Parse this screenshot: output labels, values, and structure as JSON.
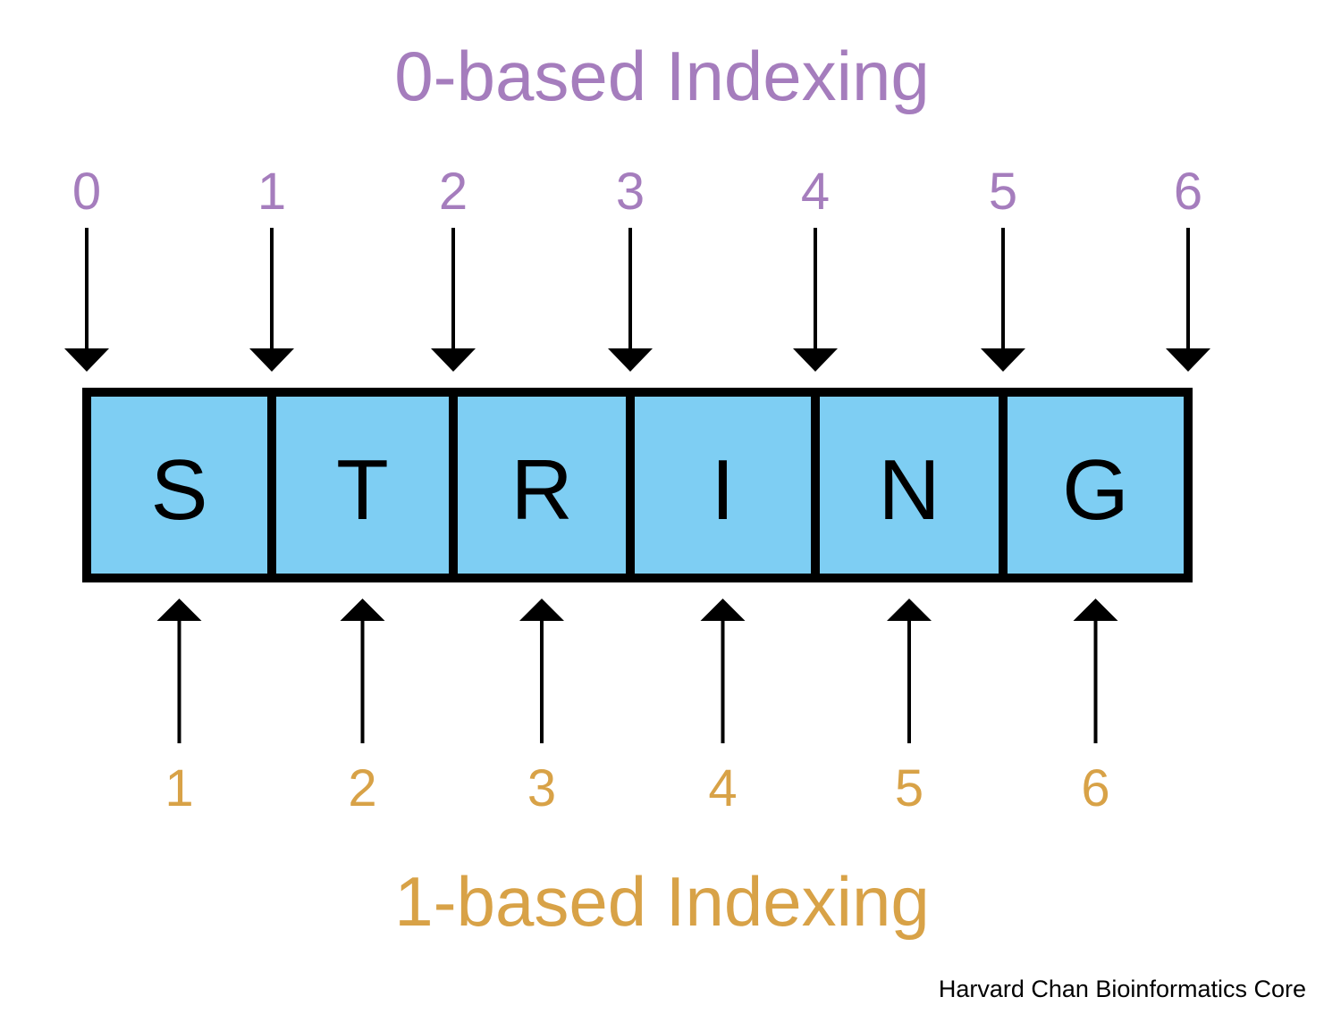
{
  "titles": {
    "zero_based": "0-based Indexing",
    "one_based": "1-based Indexing"
  },
  "string_chars": [
    "S",
    "T",
    "R",
    "I",
    "N",
    "G"
  ],
  "zero_based_indices": [
    "0",
    "1",
    "2",
    "3",
    "4",
    "5",
    "6"
  ],
  "one_based_indices": [
    "1",
    "2",
    "3",
    "4",
    "5",
    "6"
  ],
  "credit": "Harvard Chan Bioinformatics Core",
  "colors": {
    "zero_based": "#a57dbd",
    "one_based": "#d8a247",
    "cell_fill": "#7ecef3",
    "stroke": "#000000"
  }
}
